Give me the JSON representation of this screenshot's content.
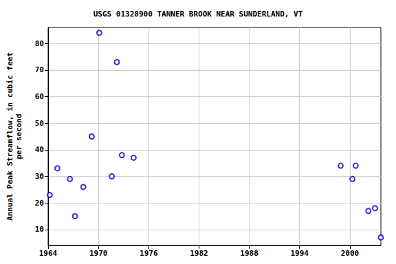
{
  "chart_data": {
    "type": "scatter",
    "title": "USGS 01328900 TANNER BROOK NEAR SUNDERLAND, VT",
    "y_label": "Annual Peak Streamflow, in cubic feet\nper second",
    "x": [
      1964.2,
      1965.1,
      1966.6,
      1967.2,
      1968.2,
      1969.2,
      1970.1,
      1971.6,
      1972.2,
      1972.8,
      1974.2,
      1998.9,
      2000.3,
      2000.7,
      2002.2,
      2003.0,
      2003.7
    ],
    "values": [
      23,
      33,
      29,
      15,
      26,
      45,
      84,
      30,
      73,
      38,
      37,
      34,
      29,
      34,
      17,
      18,
      7
    ],
    "color": "#0000cc",
    "marker": "circle",
    "xlim": [
      1964,
      2003.7
    ],
    "xticks": [
      1964,
      1970,
      1976,
      1982,
      1988,
      1994,
      2000
    ],
    "ylim": [
      4,
      86
    ],
    "yticks": [
      10,
      20,
      30,
      40,
      50,
      60,
      70,
      80
    ],
    "grid": true
  }
}
